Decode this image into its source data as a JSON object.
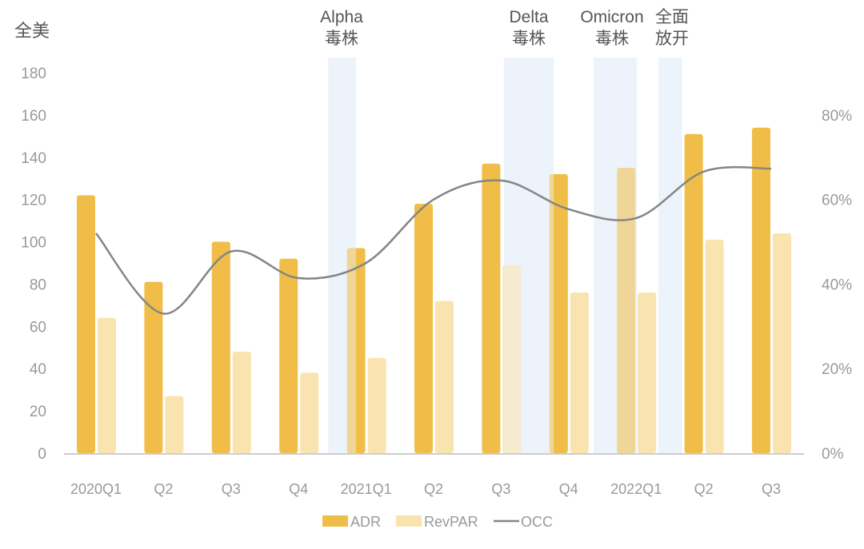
{
  "chart_data": {
    "type": "bar",
    "ylabel": "全美",
    "categories": [
      "2020Q1",
      "Q2",
      "Q3",
      "Q4",
      "2021Q1",
      "Q2",
      "Q3",
      "Q4",
      "2022Q1",
      "Q2",
      "Q3"
    ],
    "series": [
      {
        "name": "ADR",
        "type": "bar",
        "axis": "left",
        "color": "#F0BE48",
        "values": [
          122,
          81,
          100,
          92,
          97,
          118,
          137,
          132,
          135,
          151,
          154
        ]
      },
      {
        "name": "RevPAR",
        "type": "bar",
        "axis": "left",
        "color": "#F9E4B0",
        "values": [
          64,
          27,
          48,
          38,
          45,
          72,
          89,
          76,
          76,
          101,
          104
        ]
      },
      {
        "name": "OCC",
        "type": "line",
        "axis": "right",
        "color": "#858585",
        "values": [
          52,
          33,
          47.7,
          41.4,
          45,
          60,
          64.5,
          57.7,
          55.6,
          66.6,
          67.3
        ]
      }
    ],
    "ylim": [
      0,
      180
    ],
    "yticks": [
      0,
      20,
      40,
      60,
      80,
      100,
      120,
      140,
      160,
      180
    ],
    "y2lim": [
      0,
      90
    ],
    "y2ticks": [
      "0%",
      "20%",
      "40%",
      "60%",
      "80%"
    ],
    "annotations": [
      {
        "line1": "Alpha",
        "line2": "毒株"
      },
      {
        "line1": "Delta",
        "line2": "毒株"
      },
      {
        "line1": "Omicron",
        "line2": "毒株"
      },
      {
        "line1": "全面",
        "line2": "放开"
      }
    ],
    "band_color": "#EDF3FB",
    "grid": false,
    "legend": "bottom"
  }
}
